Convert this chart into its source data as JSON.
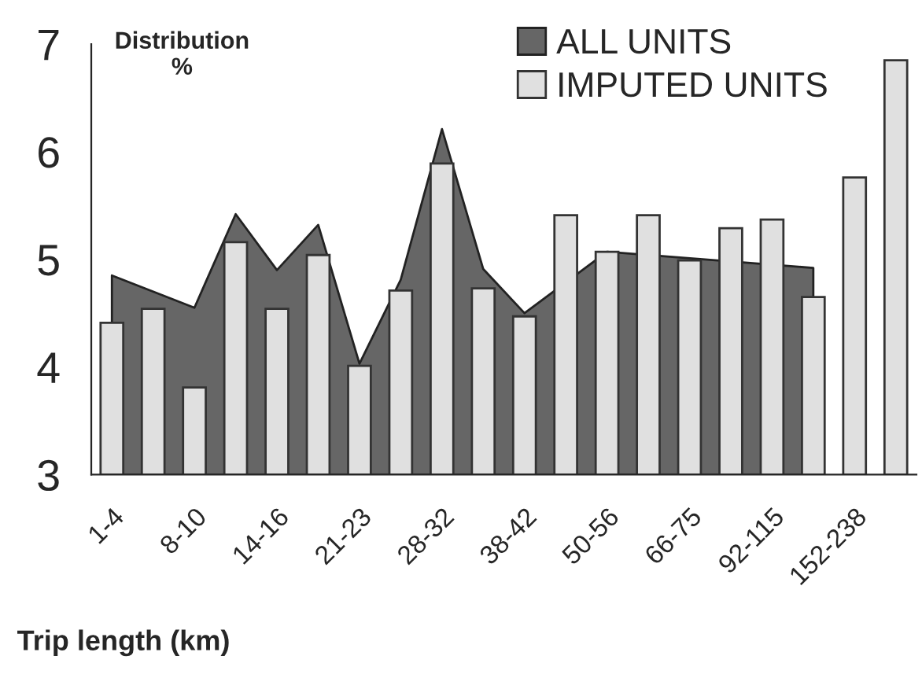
{
  "chart_data": {
    "type": "bar",
    "ylabel": "Distribution\n%",
    "xlabel": "Trip length (km)",
    "categories": [
      "1-4",
      null,
      "8-10",
      null,
      "14-16",
      null,
      "21-23",
      null,
      "28-32",
      null,
      "38-42",
      null,
      "50-56",
      null,
      "66-75",
      null,
      "92-115",
      null,
      "152-238",
      null
    ],
    "series": [
      {
        "name": "ALL UNITS",
        "type": "area",
        "color": "#666666",
        "values": [
          4.85,
          4.7,
          4.55,
          5.42,
          4.9,
          5.32,
          4.03,
          4.81,
          6.21,
          4.91,
          4.5,
          null,
          5.07,
          null,
          null,
          null,
          null,
          4.92,
          null,
          null
        ]
      },
      {
        "name": "IMPUTED UNITS",
        "color": "#e0e0e0",
        "values": [
          4.41,
          4.54,
          3.81,
          5.16,
          4.54,
          5.04,
          4.01,
          4.71,
          5.89,
          4.73,
          4.47,
          5.41,
          5.07,
          5.41,
          4.99,
          5.29,
          5.37,
          4.65,
          5.76,
          6.85
        ]
      }
    ],
    "ylim": [
      3,
      7
    ],
    "yticks": [
      3,
      4,
      5,
      6,
      7
    ],
    "legend": "top right"
  }
}
